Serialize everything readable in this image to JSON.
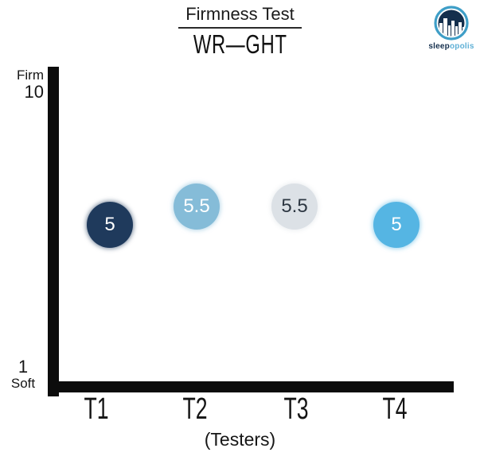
{
  "header": {
    "title": "Firmness Test",
    "brand": "WR—GHT"
  },
  "logo": {
    "text_primary": "sleep",
    "text_secondary": "opolis",
    "navy": "#142f4d",
    "light_blue": "#5fb0d6",
    "ring_blue": "#3e9ec7"
  },
  "chart_data": {
    "type": "scatter",
    "title": "Firmness Test",
    "categories": [
      "T1",
      "T2",
      "T3",
      "T4"
    ],
    "values": [
      5,
      5.5,
      5.5,
      5
    ],
    "point_colors": [
      "#1f3a5c",
      "#85bcd8",
      "#dce1e6",
      "#55b5e3"
    ],
    "point_label_colors": [
      "#ffffff",
      "#ffffff",
      "#2d3742",
      "#ffffff"
    ],
    "xlabel": "(Testers)",
    "y_axis": {
      "max_caption": "Firm",
      "max_label": "10",
      "min_label": "1",
      "min_caption": "Soft",
      "range": [
        1,
        10
      ]
    },
    "axis_color": "#0c0c0c",
    "grid": false,
    "legend": false
  }
}
